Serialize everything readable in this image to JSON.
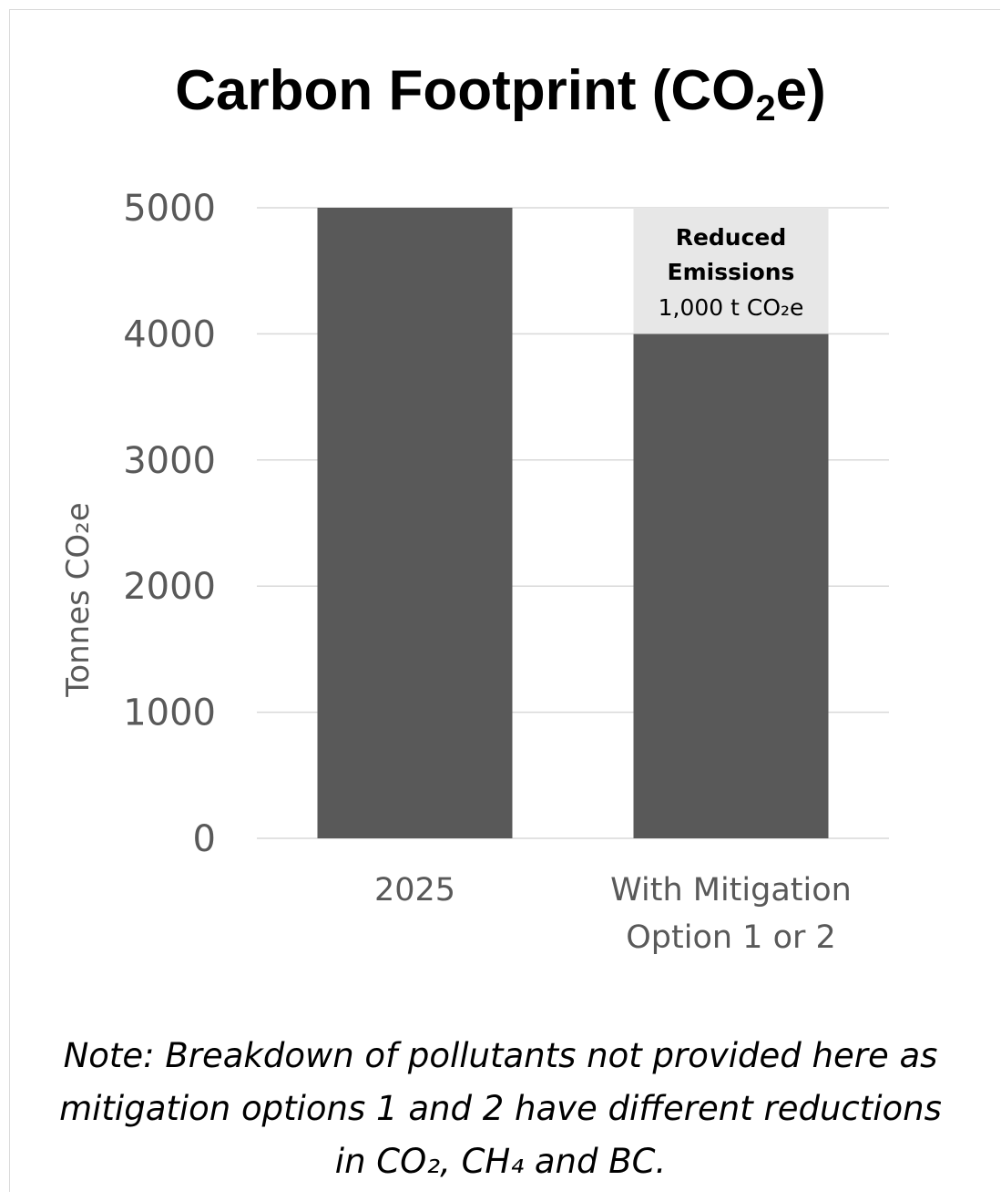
{
  "chart_data": {
    "type": "bar",
    "title_text": "Carbon Footprint (CO",
    "title_sub": "2",
    "title_end": "e)",
    "ylabel": "Tonnes  CO₂e",
    "ylim": [
      0,
      5000
    ],
    "yticks": [
      0,
      1000,
      2000,
      3000,
      4000,
      5000
    ],
    "grid": true,
    "categories": [
      "2025",
      "With Mitigation Option 1 or 2"
    ],
    "category_lines": [
      [
        "2025"
      ],
      [
        "With Mitigation",
        "Option 1 or 2"
      ]
    ],
    "series": [
      {
        "values": [
          5000,
          4000
        ],
        "color": "#595959"
      },
      {
        "name": "Reduced Emissions",
        "values": [
          0,
          1000
        ],
        "color": "#e7e7e7"
      }
    ],
    "annotation": {
      "line1": "Reduced",
      "line2": "Emissions",
      "line3": "1,000 t CO₂e"
    }
  },
  "note": {
    "line1": "Note: Breakdown of pollutants not provided here as",
    "line2": "mitigation options 1 and 2 have different reductions",
    "line3": "in CO₂, CH₄ and BC."
  }
}
